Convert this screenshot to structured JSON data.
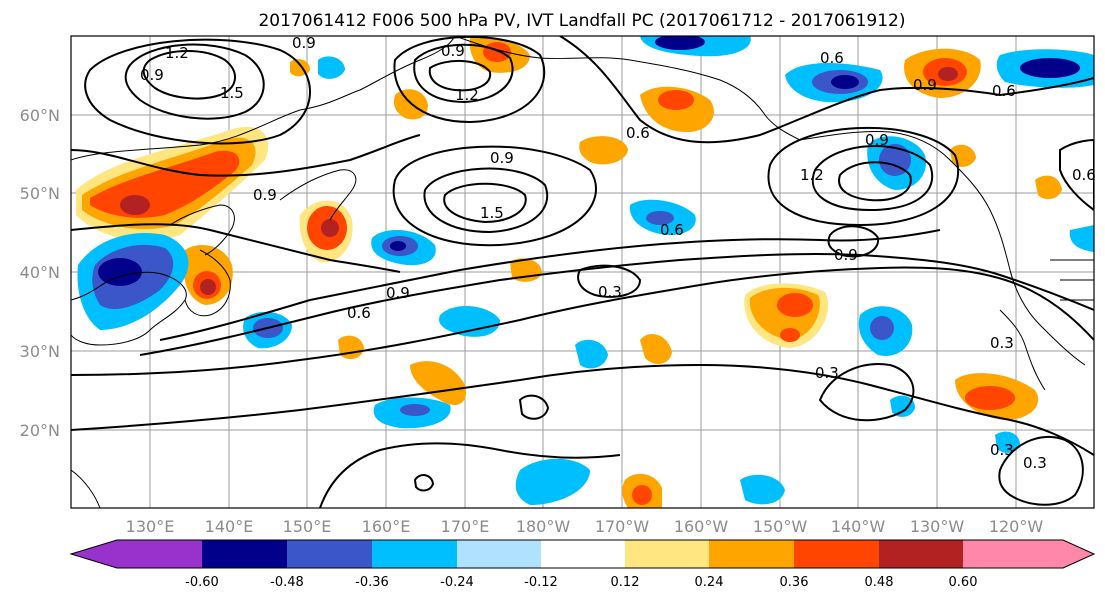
{
  "map": {
    "title": "2017061412 F006 500 hPa PV, IVT Landfall PC (2017061712 - 2017061912)",
    "latitude_labels": [
      "60°N",
      "50°N",
      "40°N",
      "30°N",
      "20°N"
    ],
    "longitude_labels": [
      "130°E",
      "140°E",
      "150°E",
      "160°E",
      "170°E",
      "180°W",
      "170°W",
      "160°W",
      "150°W",
      "140°W",
      "130°W",
      "120°W"
    ],
    "contour_labels": [
      "1.2",
      "0.9",
      "0.9",
      "0.9",
      "1.5",
      "1.2",
      "0.6",
      "0.9",
      "0.6",
      "0.9",
      "1.2",
      "0.9",
      "0.6",
      "0.9",
      "1.5",
      "0.6",
      "0.9",
      "0.9",
      "0.6",
      "0.3",
      "0.3",
      "0.3",
      "0.3",
      "0.3",
      "0.6"
    ],
    "colorbar": {
      "ticks": [
        "-0.60",
        "-0.48",
        "-0.36",
        "-0.24",
        "-0.12",
        "0.12",
        "0.24",
        "0.36",
        "0.48",
        "0.60"
      ],
      "colors": [
        "#9932CC",
        "#00008B",
        "#3A56C8",
        "#00BFFF",
        "#B0E2FF",
        "#FFFFFF",
        "#FFE680",
        "#FFA500",
        "#FF4500",
        "#B22222",
        "#FF88AA"
      ]
    }
  }
}
